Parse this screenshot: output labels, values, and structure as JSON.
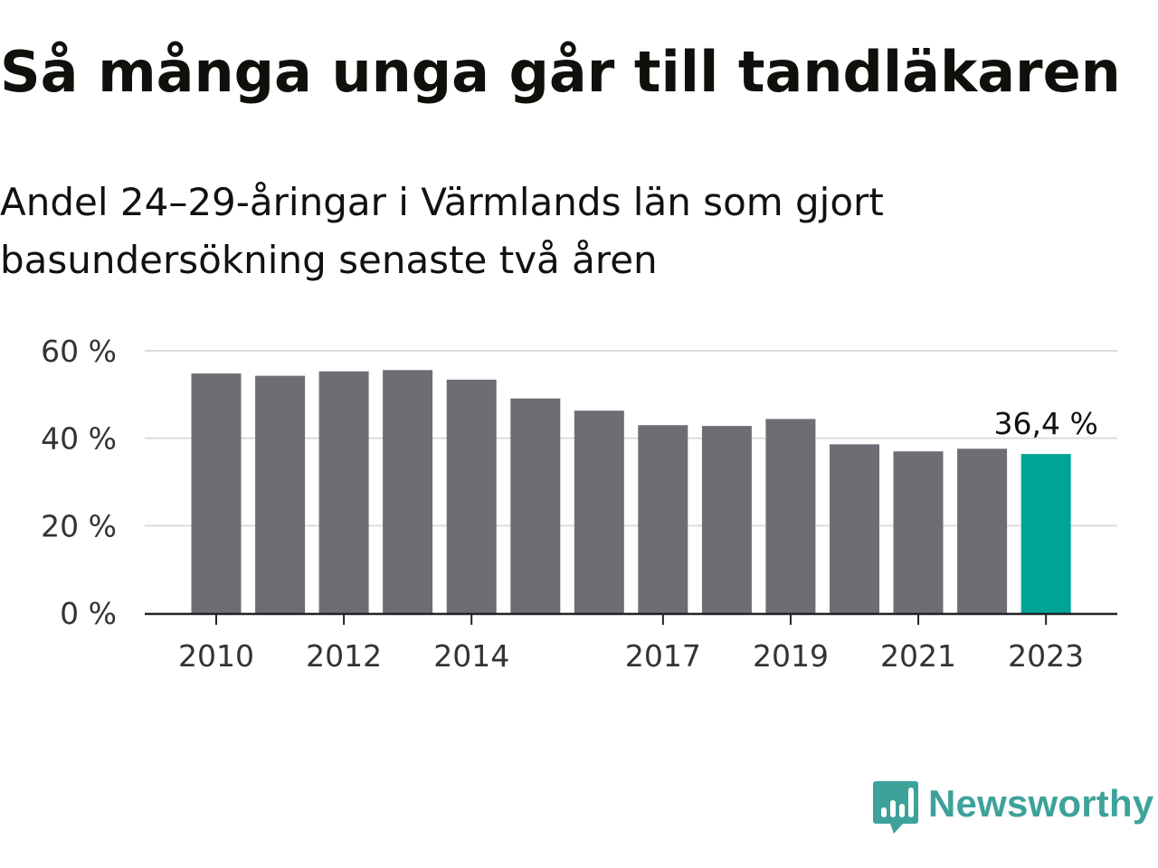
{
  "header": {
    "title": "Så många unga går till tandläkaren",
    "subtitle": "Andel 24–29-åringar i Värmlands län som gjort basundersökning senaste två åren"
  },
  "chart_data": {
    "type": "bar",
    "categories": [
      "2010",
      "2011",
      "2012",
      "2013",
      "2014",
      "2015",
      "2016",
      "2017",
      "2018",
      "2019",
      "2020",
      "2021",
      "2022",
      "2023"
    ],
    "values": [
      54.8,
      54.3,
      55.3,
      55.6,
      53.4,
      49.1,
      46.3,
      43.0,
      42.8,
      44.4,
      38.6,
      37.0,
      37.6,
      36.4
    ],
    "x_tick_labels": [
      "2010",
      "",
      "2012",
      "",
      "2014",
      "",
      "",
      "2017",
      "",
      "2019",
      "",
      "2021",
      "",
      "2023"
    ],
    "ylim": [
      0,
      60
    ],
    "y_ticks": [
      0,
      20,
      40,
      60
    ],
    "y_tick_labels": [
      "0 %",
      "20 %",
      "40 %",
      "60 %"
    ],
    "grid": true,
    "annotation": {
      "category": "2023",
      "label": "36,4 %"
    },
    "colors": {
      "bar": "#6e6d74",
      "highlight": "#00a598",
      "grid": "#dcdcdc",
      "axis": "#222222",
      "tick_text": "#333333"
    },
    "highlight_category": "2023"
  },
  "brand": {
    "name": "Newsworthy",
    "icon": "newsworthy-logo-icon",
    "color": "#3da29a"
  }
}
